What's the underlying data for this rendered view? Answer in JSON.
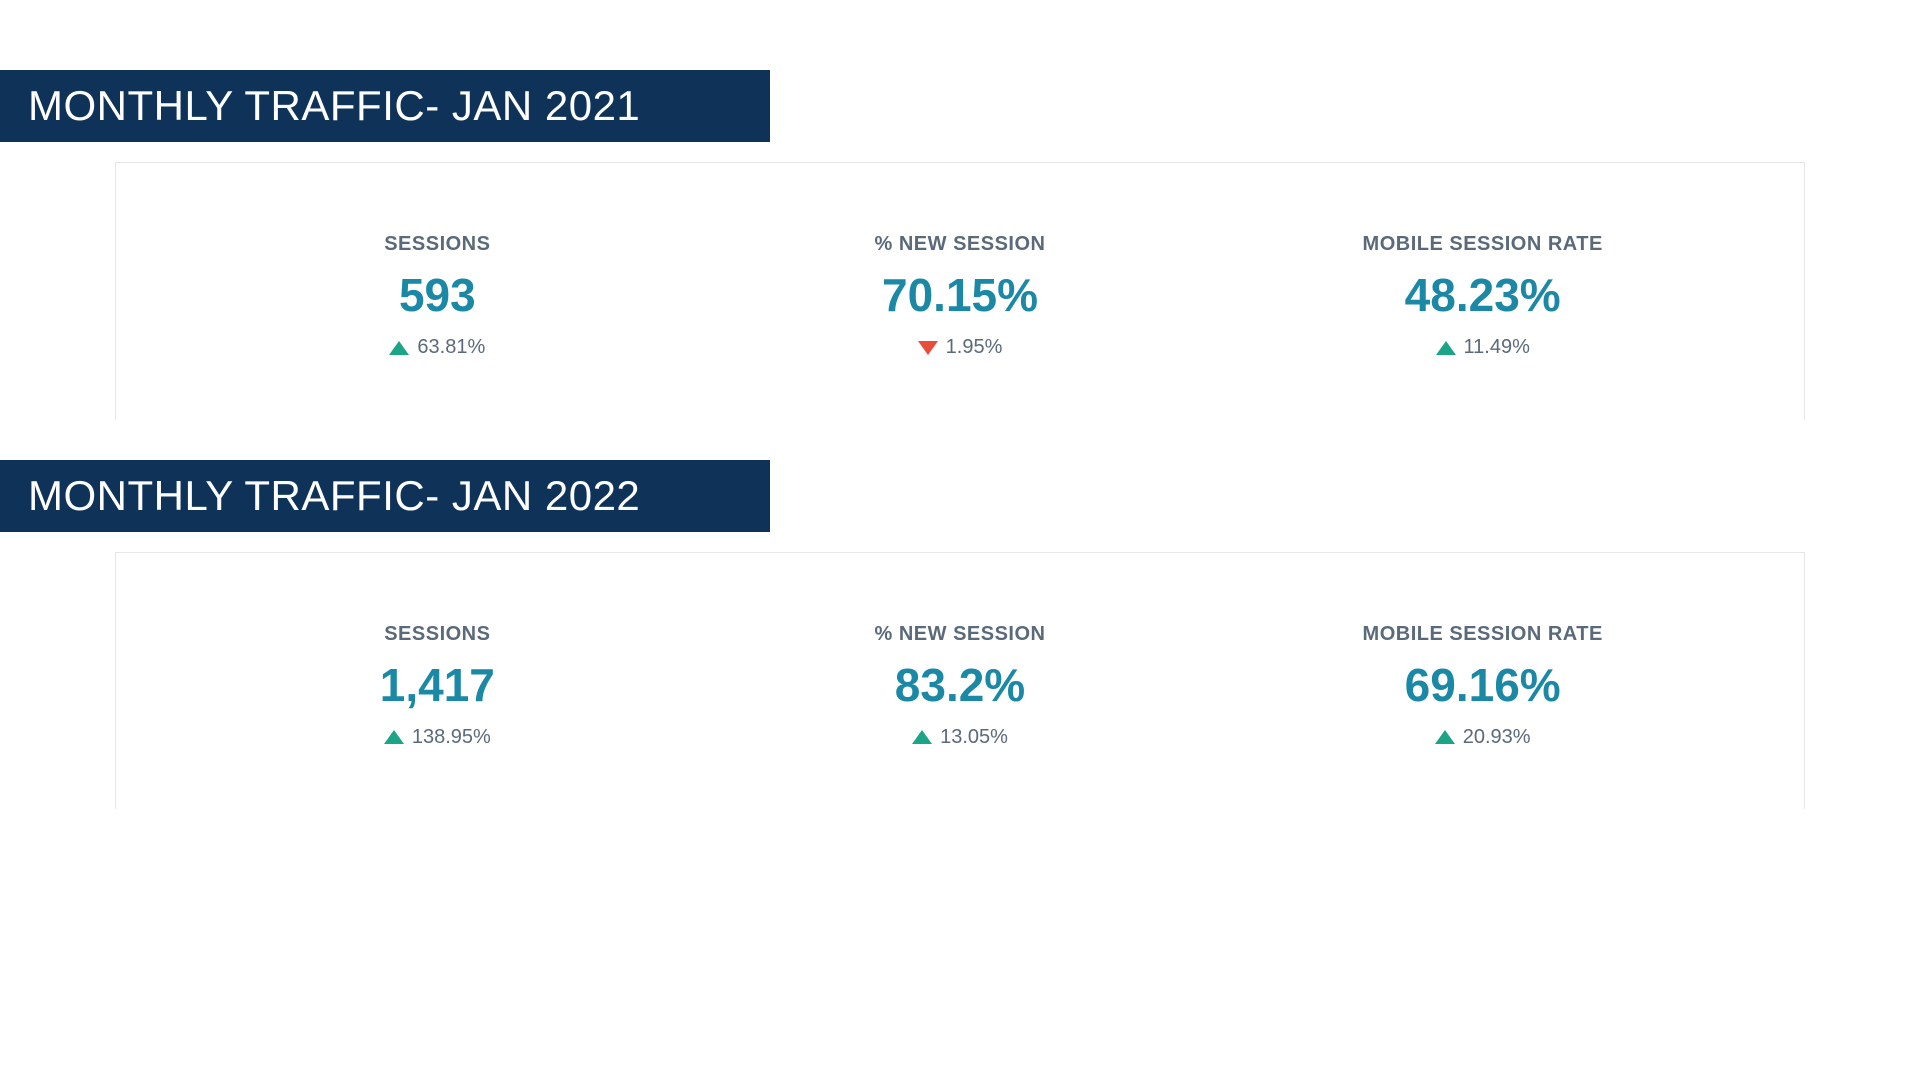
{
  "colors": {
    "title_bg": "#0f3358",
    "title_text": "#ffffff",
    "panel_border": "#e5e7eb",
    "label_text": "#5a6a7a",
    "value_text": "#1b88a5",
    "change_text": "#5a6a7a",
    "up_arrow": "#1ba586",
    "down_arrow": "#e84c3d",
    "background": "#ffffff"
  },
  "typography": {
    "title_fontsize": 42,
    "label_fontsize": 20,
    "value_fontsize": 46,
    "change_fontsize": 20
  },
  "sections": [
    {
      "title": "MONTHLY TRAFFIC- JAN 2021",
      "metrics": [
        {
          "label": "SESSIONS",
          "value": "593",
          "change_direction": "up",
          "change": "63.81%"
        },
        {
          "label": "% NEW SESSION",
          "value": "70.15%",
          "change_direction": "down",
          "change": "1.95%"
        },
        {
          "label": "MOBILE SESSION RATE",
          "value": "48.23%",
          "change_direction": "up",
          "change": "11.49%"
        }
      ]
    },
    {
      "title": "MONTHLY TRAFFIC- JAN 2022",
      "metrics": [
        {
          "label": "SESSIONS",
          "value": "1,417",
          "change_direction": "up",
          "change": "138.95%"
        },
        {
          "label": "% NEW SESSION",
          "value": "83.2%",
          "change_direction": "up",
          "change": "13.05%"
        },
        {
          "label": "MOBILE SESSION RATE",
          "value": "69.16%",
          "change_direction": "up",
          "change": "20.93%"
        }
      ]
    }
  ]
}
